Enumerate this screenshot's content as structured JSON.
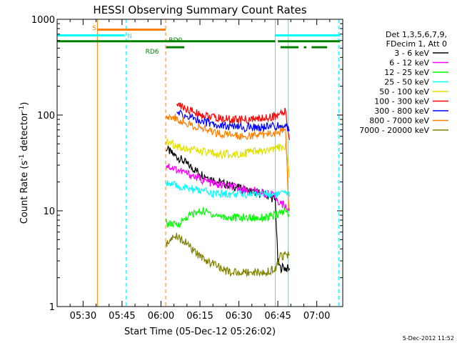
{
  "chart_data": {
    "type": "line",
    "title": "HESSI Observing Summary Count Rates",
    "xlabel": "Start Time (05-Dec-12 05:26:02)",
    "ylabel_main": "Count Rate (s",
    "ylabel_sup1": "-1",
    "ylabel_mid": " detector",
    "ylabel_sup2": "-1",
    "ylabel_end": ")",
    "y_scale": "log",
    "ylim": [
      1,
      1000
    ],
    "xlim_minutes": [
      -6,
      104
    ],
    "x_origin_label": "05:26:02",
    "x_tick_minutes": [
      4,
      19,
      34,
      49,
      64,
      79,
      94
    ],
    "x_tick_labels": [
      "05:30",
      "05:45",
      "06:00",
      "06:15",
      "06:30",
      "06:45",
      "07:00"
    ],
    "y_ticks": [
      1,
      10,
      100,
      1000
    ],
    "y_tick_labels": [
      "1",
      "10",
      "100",
      "1000"
    ],
    "legend": {
      "placement": "right",
      "header": [
        "Det 1,3,5,6,7,9,",
        "FDecim 1, Att 0"
      ],
      "entries": [
        {
          "label": "3 - 6 keV",
          "color": "#000000"
        },
        {
          "label": "6 - 12 keV",
          "color": "#ff00ff"
        },
        {
          "label": "12 - 25 keV",
          "color": "#00ff00"
        },
        {
          "label": "25 - 50 keV",
          "color": "#00ffff"
        },
        {
          "label": "50 - 100 keV",
          "color": "#e0e000"
        },
        {
          "label": "100 - 300 keV",
          "color": "#ff0000"
        },
        {
          "label": "300 - 800 keV",
          "color": "#0000ff"
        },
        {
          "label": "800 - 7000 keV",
          "color": "#ff8000"
        },
        {
          "label": "7000 - 20000 keV",
          "color": "#808000"
        }
      ]
    },
    "flags": [
      {
        "label": "S",
        "color": "#ff8000",
        "start": 9.5,
        "end": 35.8,
        "level": 780,
        "label_at": 7.5,
        "label_level": 830
      },
      {
        "label": "N",
        "color": "#00ffff",
        "start": -6,
        "end": 20,
        "level": 680,
        "label_at": 21,
        "label_level": 680
      },
      {
        "label": "N",
        "color": "#00ffff",
        "start": 78,
        "end": 103,
        "level": 680
      },
      {
        "label": "RD0",
        "color": "#008000",
        "start": -6,
        "end": 78,
        "level": 590,
        "label_at": 37,
        "label_level": 620
      },
      {
        "label": "RD0",
        "color": "#008000",
        "start": 79,
        "end": 103,
        "level": 590
      },
      {
        "label": "RD6",
        "color": "#008000",
        "start": 36,
        "end": 43,
        "level": 510,
        "label_at": 28,
        "label_level": 470
      },
      {
        "label": "RD6",
        "color": "#008000",
        "start": 80,
        "end": 87,
        "level": 510
      },
      {
        "label": "RD6",
        "color": "#008000",
        "start": 89,
        "end": 90,
        "level": 510
      },
      {
        "label": "RD6",
        "color": "#008000",
        "start": 92,
        "end": 98,
        "level": 510
      }
    ],
    "vertical_markers": [
      {
        "minute": -6,
        "color": "#00ffff",
        "style": "solid"
      },
      {
        "minute": 9.5,
        "color": "#ff8000",
        "style": "solid"
      },
      {
        "minute": 20.5,
        "color": "#00ffff",
        "style": "dashed"
      },
      {
        "minute": 35.8,
        "color": "#ff8000",
        "style": "dashed"
      },
      {
        "minute": 78,
        "color": "#00ffff",
        "style": "solid"
      },
      {
        "minute": 83,
        "color": "#00ffff",
        "style": "solid"
      },
      {
        "minute": 102.5,
        "color": "#00ffff",
        "style": "dashed"
      }
    ],
    "series": [
      {
        "name": "3 - 6 keV",
        "color": "#000000",
        "x": [
          36,
          38,
          42,
          46,
          50,
          56,
          62,
          68,
          74,
          78,
          79,
          80,
          81,
          82,
          83.5
        ],
        "values": [
          45,
          40,
          34,
          28,
          24,
          20,
          18,
          16,
          15,
          13,
          3,
          2.5,
          2.6,
          2.5,
          2.5
        ]
      },
      {
        "name": "6 - 12 keV",
        "color": "#ff00ff",
        "x": [
          36,
          40,
          45,
          50,
          55,
          60,
          65,
          70,
          75,
          78,
          80,
          82,
          83.5
        ],
        "values": [
          30,
          27,
          24,
          21,
          19,
          18,
          17,
          16,
          15,
          14,
          12,
          11,
          10
        ]
      },
      {
        "name": "12 - 25 keV",
        "color": "#00ff00",
        "x": [
          36,
          40,
          45,
          50,
          55,
          60,
          65,
          70,
          75,
          78,
          80,
          82,
          83.5
        ],
        "values": [
          7.5,
          7,
          9,
          10,
          9,
          8.5,
          8.5,
          8.5,
          8.5,
          9,
          9.5,
          10,
          9
        ]
      },
      {
        "name": "25 - 50 keV",
        "color": "#00ffff",
        "x": [
          36,
          40,
          45,
          50,
          55,
          60,
          65,
          70,
          75,
          78,
          80,
          82,
          83.5
        ],
        "values": [
          20,
          18,
          17,
          16,
          15,
          15,
          15,
          15,
          15,
          15,
          15,
          15,
          14
        ]
      },
      {
        "name": "50 - 100 keV",
        "color": "#e0e000",
        "x": [
          36,
          40,
          45,
          50,
          55,
          60,
          65,
          70,
          75,
          78,
          80,
          82,
          83.5
        ],
        "values": [
          53,
          48,
          44,
          41,
          39,
          39,
          40,
          41,
          42,
          44,
          46,
          47,
          22
        ]
      },
      {
        "name": "100 - 300 keV",
        "color": "#ff0000",
        "x": [
          40,
          45,
          50,
          55,
          60,
          65,
          70,
          75,
          80,
          82,
          83.5
        ],
        "values": [
          130,
          112,
          100,
          93,
          90,
          89,
          90,
          94,
          101,
          108,
          55
        ]
      },
      {
        "name": "300 - 800 keV",
        "color": "#0000ff",
        "x": [
          40,
          45,
          50,
          55,
          60,
          65,
          70,
          75,
          80,
          82,
          83.5
        ],
        "values": [
          105,
          95,
          86,
          80,
          76,
          74,
          74,
          75,
          77,
          80,
          70
        ]
      },
      {
        "name": "800 - 7000 keV",
        "color": "#ff8000",
        "x": [
          36,
          40,
          45,
          50,
          55,
          60,
          65,
          70,
          75,
          80,
          82,
          83,
          83.5
        ],
        "values": [
          100,
          92,
          80,
          72,
          66,
          62,
          61,
          61,
          63,
          68,
          72,
          15,
          10
        ]
      },
      {
        "name": "7000 - 20000 keV",
        "color": "#808000",
        "x": [
          36,
          40,
          44,
          48,
          52,
          56,
          60,
          65,
          70,
          75,
          78,
          80,
          82,
          83.5
        ],
        "values": [
          4.5,
          5.5,
          4.5,
          3.5,
          3,
          2.6,
          2.3,
          2.3,
          2.3,
          2.3,
          2.5,
          3.3,
          3.5,
          3.5
        ]
      }
    ]
  },
  "footer": {
    "timestamp": "5-Dec-2012 11:52"
  }
}
